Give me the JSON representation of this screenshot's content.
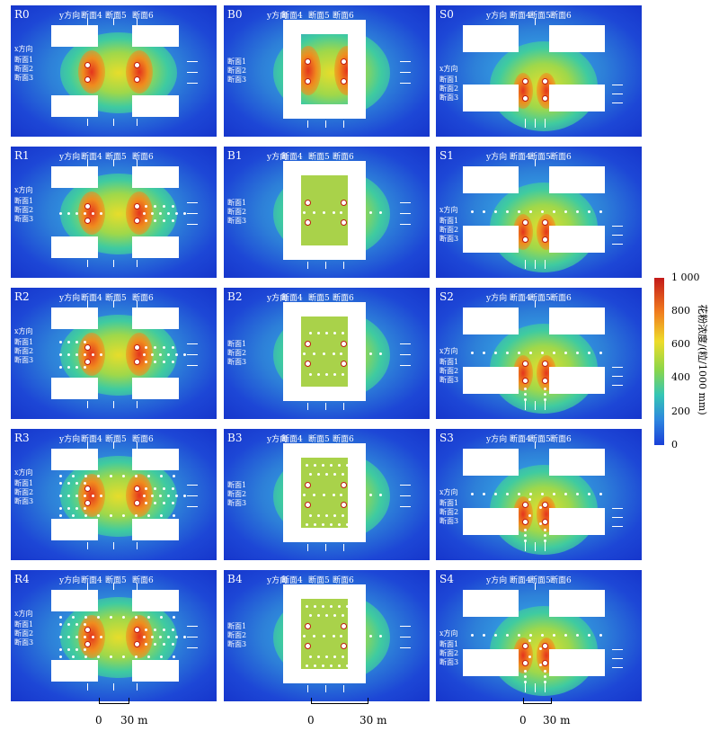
{
  "panels": [
    {
      "id": "R0",
      "col": 0,
      "row": 0,
      "type": "R",
      "label": "R0"
    },
    {
      "id": "R1",
      "col": 0,
      "row": 1,
      "type": "R",
      "label": "R1"
    },
    {
      "id": "R2",
      "col": 0,
      "row": 2,
      "type": "R",
      "label": "R2"
    },
    {
      "id": "R3",
      "col": 0,
      "row": 3,
      "type": "R",
      "label": "R3"
    },
    {
      "id": "R4",
      "col": 0,
      "row": 4,
      "type": "R",
      "label": "R4"
    },
    {
      "id": "B0",
      "col": 1,
      "row": 0,
      "type": "B",
      "label": "B0"
    },
    {
      "id": "B1",
      "col": 1,
      "row": 1,
      "type": "B",
      "label": "B1"
    },
    {
      "id": "B2",
      "col": 1,
      "row": 2,
      "type": "B",
      "label": "B2"
    },
    {
      "id": "B3",
      "col": 1,
      "row": 3,
      "type": "B",
      "label": "B3"
    },
    {
      "id": "B4",
      "col": 1,
      "row": 4,
      "type": "B",
      "label": "B4"
    },
    {
      "id": "S0",
      "col": 2,
      "row": 0,
      "type": "S",
      "label": "S0"
    },
    {
      "id": "S1",
      "col": 2,
      "row": 1,
      "type": "S",
      "label": "S1"
    },
    {
      "id": "S2",
      "col": 2,
      "row": 2,
      "type": "S",
      "label": "S2"
    },
    {
      "id": "S3",
      "col": 2,
      "row": 3,
      "type": "S",
      "label": "S3"
    },
    {
      "id": "S4",
      "col": 2,
      "row": 4,
      "type": "S",
      "label": "S4"
    }
  ],
  "labels": {
    "y_direction": "y方向",
    "x_direction": "x方向",
    "section1": "断面1",
    "section2": "断面2",
    "section3": "断面3",
    "section4": "断面4",
    "section5": "断面5",
    "section6": "断面6"
  },
  "colorbar": {
    "title": "花粉浓度/(粒/1000 mm)",
    "ticks": [
      "1 000",
      "800",
      "600",
      "400",
      "200",
      "0"
    ],
    "max": 1000,
    "min": 0
  },
  "scalebars": [
    {
      "zero": "0",
      "end": "30 m"
    },
    {
      "zero": "0",
      "end": "30 m"
    },
    {
      "zero": "0",
      "end": "30 m"
    }
  ]
}
